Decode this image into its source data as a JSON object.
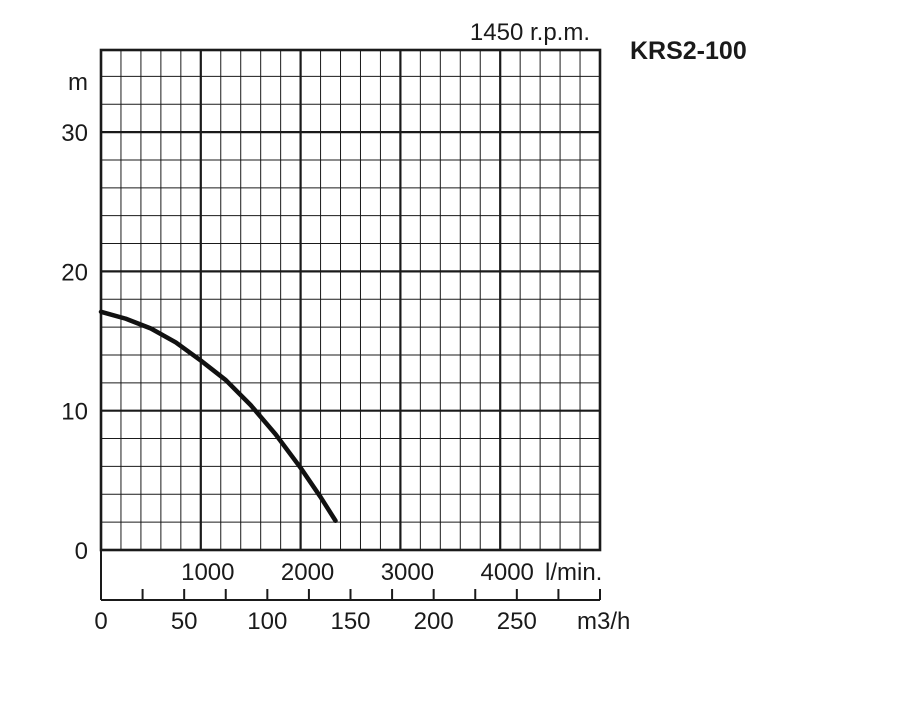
{
  "chart_data": {
    "type": "line",
    "title": "KRS2-100",
    "speed_label": "1450 r.p.m.",
    "ylabel": "m",
    "ylim": [
      0,
      30
    ],
    "yticks": [
      0,
      10,
      20,
      30
    ],
    "x_lpm": {
      "lim": [
        0,
        5000
      ],
      "ticks": [
        1000,
        2000,
        3000,
        4000
      ],
      "unit": "l/min."
    },
    "x_m3h": {
      "lim": [
        0,
        300
      ],
      "ticks": [
        0,
        50,
        100,
        150,
        200,
        250
      ],
      "unit": "m3/h"
    },
    "grid": true,
    "series": [
      {
        "x_lpm": [
          0,
          250,
          500,
          750,
          1000,
          1250,
          1500,
          1750,
          2000,
          2200,
          2350
        ],
        "y": [
          17.1,
          16.6,
          15.9,
          14.9,
          13.6,
          12.2,
          10.4,
          8.3,
          5.9,
          3.8,
          2.1
        ]
      }
    ]
  }
}
